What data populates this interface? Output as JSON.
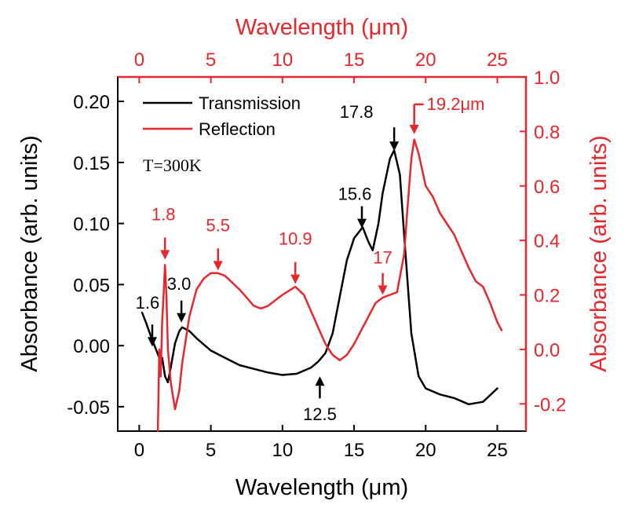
{
  "chart_data": {
    "type": "line",
    "xlabel_bottom": "Wavelength (μm)",
    "xlabel_top": "Wavelength (μm)",
    "ylabel_left": "Absorbance (arb. units)",
    "ylabel_right": "Absorbance (arb. units)",
    "xlim": [
      -1.5,
      27
    ],
    "xticks": [
      0,
      5,
      10,
      15,
      20,
      25
    ],
    "xtick_labels": [
      "0",
      "5",
      "10",
      "15",
      "20",
      "25"
    ],
    "top_xticks": [
      0,
      5,
      10,
      15,
      20,
      25
    ],
    "top_xtick_labels": [
      "0",
      "5",
      "10",
      "15",
      "20",
      "25"
    ],
    "ylim_left": [
      -0.07,
      0.22
    ],
    "yticks_left": [
      -0.05,
      0,
      0.05,
      0.1,
      0.15,
      0.2
    ],
    "ytick_labels_left": [
      "-0.05",
      "0.00",
      "0.05",
      "0.10",
      "0.15",
      "0.20"
    ],
    "ylim_right": [
      -0.3,
      1.0
    ],
    "yticks_right": [
      -0.2,
      0,
      0.2,
      0.4,
      0.6,
      0.8,
      1.0
    ],
    "ytick_labels_right": [
      "-0.2",
      "0.0",
      "0.2",
      "0.4",
      "0.6",
      "0.8",
      "1.0"
    ],
    "grid": false,
    "legend_position": "top-left",
    "series": [
      {
        "name": "Transmission",
        "color": "#000000",
        "axis": "left",
        "x": [
          0.2,
          0.5,
          0.8,
          1.0,
          1.2,
          1.4,
          1.6,
          1.8,
          2.0,
          2.2,
          2.5,
          2.8,
          3.0,
          3.5,
          4.0,
          5.0,
          6.0,
          7.0,
          8.0,
          9.0,
          10.0,
          11.0,
          12.0,
          12.5,
          13.0,
          13.5,
          14.0,
          14.5,
          15.0,
          15.6,
          16.0,
          16.3,
          16.7,
          17.0,
          17.5,
          17.8,
          18.2,
          18.5,
          19.0,
          19.5,
          20.0,
          21.0,
          22.0,
          23.0,
          24.0,
          25.0
        ],
        "y": [
          0.027,
          0.018,
          0.008,
          0.002,
          -0.004,
          -0.01,
          -0.01,
          -0.025,
          -0.03,
          -0.018,
          0.002,
          0.012,
          0.015,
          0.012,
          0.006,
          -0.004,
          -0.01,
          -0.016,
          -0.019,
          -0.022,
          -0.024,
          -0.023,
          -0.018,
          -0.013,
          -0.006,
          0.01,
          0.04,
          0.07,
          0.088,
          0.097,
          0.085,
          0.078,
          0.1,
          0.125,
          0.153,
          0.16,
          0.14,
          0.09,
          0.01,
          -0.025,
          -0.035,
          -0.04,
          -0.043,
          -0.048,
          -0.046,
          -0.035
        ]
      },
      {
        "name": "Reflection",
        "color": "#e8262b",
        "axis": "right",
        "x": [
          1.3,
          1.4,
          1.5,
          1.6,
          1.7,
          1.8,
          1.9,
          2.0,
          2.2,
          2.5,
          2.8,
          3.0,
          3.5,
          4.0,
          4.5,
          5.0,
          5.5,
          6.0,
          7.0,
          8.0,
          8.5,
          9.0,
          10.0,
          10.9,
          11.5,
          12.0,
          12.5,
          13.0,
          13.5,
          14.0,
          14.5,
          15.0,
          15.5,
          16.0,
          16.5,
          17.0,
          17.5,
          18.0,
          18.5,
          18.7,
          19.0,
          19.2,
          19.5,
          20.0,
          20.5,
          21.0,
          22.0,
          23.0,
          23.5,
          24.0,
          24.5,
          25.0,
          25.3
        ],
        "y": [
          -0.3,
          0.0,
          -0.1,
          0.1,
          0.2,
          0.31,
          0.2,
          0.0,
          -0.12,
          -0.22,
          -0.15,
          -0.05,
          0.12,
          0.22,
          0.26,
          0.28,
          0.28,
          0.27,
          0.22,
          0.16,
          0.15,
          0.16,
          0.2,
          0.23,
          0.2,
          0.14,
          0.08,
          0.02,
          -0.02,
          -0.04,
          -0.02,
          0.02,
          0.07,
          0.12,
          0.17,
          0.19,
          0.2,
          0.21,
          0.35,
          0.5,
          0.7,
          0.77,
          0.72,
          0.6,
          0.56,
          0.5,
          0.42,
          0.3,
          0.25,
          0.23,
          0.17,
          0.1,
          0.07
        ]
      }
    ],
    "legend": {
      "transmission": "Transmission",
      "reflection": "Reflection"
    },
    "temperature_label": "T=300K",
    "annotations": {
      "transmission": [
        {
          "text": "1.6",
          "x": 0.8,
          "y": -0.002
        },
        {
          "text": "3.0",
          "x": 3.0,
          "y": 0.015
        },
        {
          "text": "12.5",
          "x": 12.5,
          "y": -0.02
        },
        {
          "text": "15.6",
          "x": 15.6,
          "y": 0.1
        },
        {
          "text": "17.8",
          "x": 17.8,
          "y": 0.162
        }
      ],
      "reflection": [
        {
          "text": "1.8",
          "x": 1.8,
          "y": 0.33
        },
        {
          "text": "5.5",
          "x": 5.5,
          "y": 0.29
        },
        {
          "text": "10.9",
          "x": 10.9,
          "y": 0.24
        },
        {
          "text": "17",
          "x": 17.0,
          "y": 0.2
        },
        {
          "text": "19.2μm",
          "x": 19.2,
          "y": 0.79
        }
      ]
    }
  }
}
